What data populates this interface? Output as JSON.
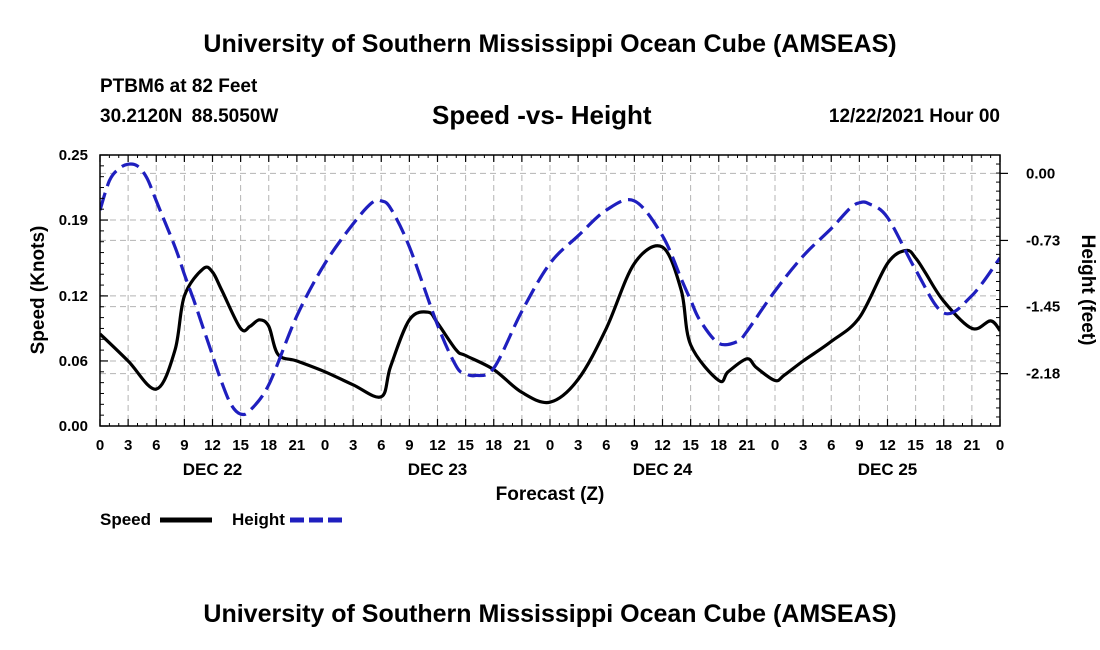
{
  "header": {
    "title": "University of Southern Mississippi Ocean Cube (AMSEAS)",
    "station": "PTBM6 at 82 Feet",
    "coords": "30.2120N  88.5050W",
    "subtitle": "Speed -vs- Height",
    "datetime": "12/22/2021 Hour 00"
  },
  "footer": {
    "title": "University of Southern Mississippi Ocean Cube (AMSEAS)"
  },
  "legend": {
    "speed_label": "Speed",
    "height_label": "Height"
  },
  "colors": {
    "speed": "#000000",
    "height": "#1f1fbf",
    "grid": "#b4b4b4"
  },
  "chart_data": {
    "type": "line",
    "title": "Speed -vs- Height",
    "xlabel": "Forecast (Z)",
    "ylabel": "Speed (Knots)",
    "y2label": "Height (feet)",
    "xlim": [
      0,
      96
    ],
    "ylim": [
      0,
      0.25
    ],
    "y2lim": [
      -2.75,
      0.2
    ],
    "x_ticks": [
      0,
      3,
      6,
      9,
      12,
      15,
      18,
      21,
      24,
      27,
      30,
      33,
      36,
      39,
      42,
      45,
      48,
      51,
      54,
      57,
      60,
      63,
      66,
      69,
      72,
      75,
      78,
      81,
      84,
      87,
      90,
      93,
      96
    ],
    "x_tick_labels": [
      "0",
      "3",
      "6",
      "9",
      "12",
      "15",
      "18",
      "21",
      "0",
      "3",
      "6",
      "9",
      "12",
      "15",
      "18",
      "21",
      "0",
      "3",
      "6",
      "9",
      "12",
      "15",
      "18",
      "21",
      "0",
      "3",
      "6",
      "9",
      "12",
      "15",
      "18",
      "21",
      "0"
    ],
    "y_ticks": [
      0.0,
      0.06,
      0.12,
      0.19,
      0.25
    ],
    "y_tick_labels": [
      "0.00",
      "0.06",
      "0.12",
      "0.19",
      "0.25"
    ],
    "y2_ticks": [
      0.0,
      -0.73,
      -1.45,
      -2.18
    ],
    "y2_tick_labels": [
      "0.00",
      "-0.73",
      "-1.45",
      "-2.18"
    ],
    "date_labels": [
      {
        "x": 12,
        "label": "DEC 22"
      },
      {
        "x": 36,
        "label": "DEC 23"
      },
      {
        "x": 60,
        "label": "DEC 24"
      },
      {
        "x": 84,
        "label": "DEC 25"
      }
    ],
    "grid": true,
    "series": [
      {
        "name": "Speed",
        "axis": "left",
        "style": "solid",
        "x": [
          0,
          3,
          6,
          8,
          9,
          11,
          12,
          13,
          15,
          16,
          17,
          18,
          19,
          21,
          24,
          27,
          30,
          31,
          33,
          35,
          36,
          38,
          39,
          42,
          45,
          48,
          51,
          54,
          57,
          60,
          62,
          63,
          66,
          67,
          69,
          70,
          72,
          73,
          75,
          78,
          81,
          84,
          86,
          87,
          88,
          90,
          93,
          95,
          96
        ],
        "values": [
          0.085,
          0.06,
          0.034,
          0.07,
          0.12,
          0.145,
          0.142,
          0.125,
          0.09,
          0.092,
          0.098,
          0.092,
          0.066,
          0.06,
          0.05,
          0.038,
          0.027,
          0.055,
          0.098,
          0.105,
          0.095,
          0.07,
          0.065,
          0.052,
          0.031,
          0.022,
          0.043,
          0.09,
          0.15,
          0.165,
          0.125,
          0.075,
          0.042,
          0.05,
          0.062,
          0.054,
          0.042,
          0.047,
          0.06,
          0.078,
          0.1,
          0.15,
          0.162,
          0.155,
          0.142,
          0.115,
          0.09,
          0.097,
          0.088
        ]
      },
      {
        "name": "Height",
        "axis": "right",
        "style": "dashed",
        "x": [
          0,
          1,
          2,
          3,
          4,
          5,
          6,
          8,
          9,
          10,
          11,
          12,
          13,
          14,
          15,
          16,
          18,
          21,
          24,
          27,
          29,
          30,
          31,
          33,
          36,
          38,
          39,
          40,
          42,
          45,
          48,
          51,
          54,
          57,
          60,
          62,
          63,
          64,
          66,
          68,
          69,
          72,
          75,
          78,
          80,
          81,
          82,
          84,
          87,
          90,
          93,
          96
        ],
        "values": [
          -0.4,
          -0.08,
          0.05,
          0.1,
          0.08,
          -0.05,
          -0.3,
          -0.8,
          -1.1,
          -1.38,
          -1.68,
          -1.98,
          -2.28,
          -2.52,
          -2.62,
          -2.58,
          -2.3,
          -1.55,
          -0.98,
          -0.55,
          -0.32,
          -0.3,
          -0.38,
          -0.8,
          -1.65,
          -2.1,
          -2.18,
          -2.2,
          -2.12,
          -1.5,
          -0.98,
          -0.68,
          -0.4,
          -0.3,
          -0.68,
          -1.15,
          -1.38,
          -1.6,
          -1.85,
          -1.83,
          -1.72,
          -1.28,
          -0.9,
          -0.6,
          -0.38,
          -0.32,
          -0.33,
          -0.48,
          -1.05,
          -1.52,
          -1.33,
          -0.92
        ]
      }
    ]
  }
}
